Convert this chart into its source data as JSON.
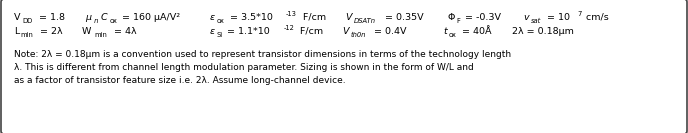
{
  "background_color": "#ffffff",
  "border_color": "#444444",
  "text_color": "#000000",
  "font_size": 6.8,
  "note_font_size": 6.5,
  "figsize": [
    6.88,
    1.33
  ],
  "dpi": 100,
  "note_lines": [
    "Note: 2λ = 0.18μm is a convention used to represent transistor dimensions in terms of the technology length",
    "λ. This is different from channel length modulation parameter. Sizing is shown in the form of W/L and",
    "as a factor of transistor feature size i.e. 2λ. Assume long-channel device."
  ]
}
